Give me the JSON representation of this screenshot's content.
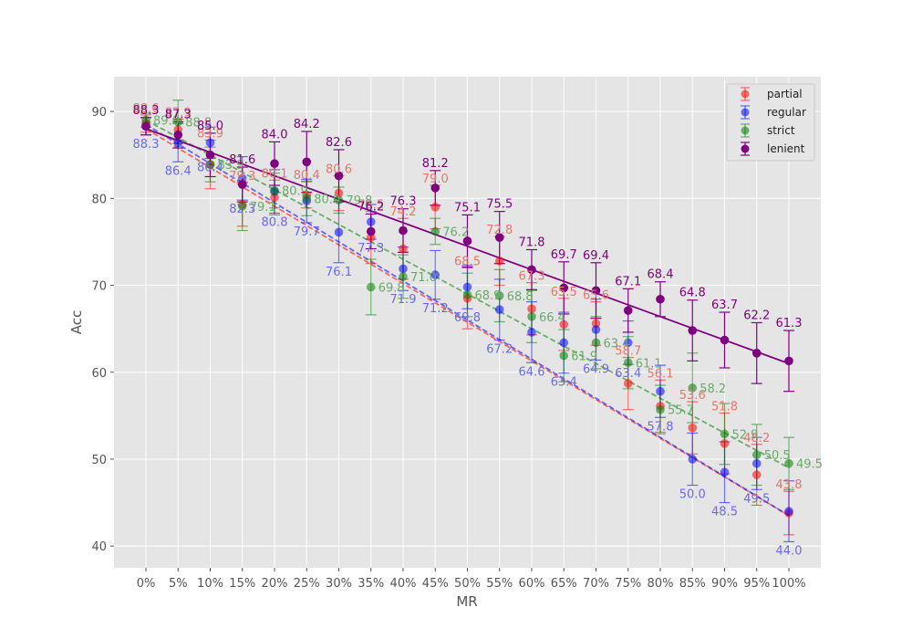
{
  "chart_data": {
    "type": "scatter",
    "title": "",
    "xlabel": "MR",
    "ylabel": "Acc",
    "categories": [
      "0%",
      "5%",
      "10%",
      "15%",
      "20%",
      "25%",
      "30%",
      "35%",
      "40%",
      "45%",
      "50%",
      "55%",
      "60%",
      "65%",
      "70%",
      "75%",
      "80%",
      "85%",
      "90%",
      "95%",
      "100%"
    ],
    "yticks": [
      40,
      50,
      60,
      70,
      80,
      90
    ],
    "ylim": [
      37.5,
      94.0
    ],
    "grid": true,
    "legend_position": "top-right",
    "series": [
      {
        "name": "partial",
        "color": "#ff0000",
        "label_color": "#e8766a",
        "values": [
          88.6,
          87.9,
          83.9,
          79.3,
          80.1,
          80.4,
          80.6,
          75.5,
          74.2,
          79.0,
          68.5,
          72.8,
          67.3,
          65.5,
          65.6,
          58.7,
          56.1,
          53.6,
          51.8,
          48.2,
          43.8
        ],
        "errors": [
          1.0,
          1.2,
          2.8,
          2.5,
          2.0,
          1.5,
          2.0,
          3.0,
          3.5,
          2.5,
          3.5,
          2.8,
          3.0,
          3.0,
          2.5,
          3.0,
          3.0,
          3.0,
          3.5,
          3.5,
          2.5
        ],
        "trend_start": 88.0,
        "trend_end": 43.5
      },
      {
        "name": "regular",
        "color": "#0000ff",
        "label_color": "#6a6ae8",
        "values": [
          88.3,
          86.4,
          86.4,
          82.3,
          80.8,
          79.7,
          76.1,
          77.3,
          71.9,
          71.2,
          69.8,
          67.2,
          64.6,
          63.4,
          64.9,
          63.4,
          57.8,
          50.0,
          48.5,
          49.5,
          44.0
        ],
        "errors": [
          1.0,
          2.2,
          1.8,
          2.5,
          2.5,
          2.5,
          3.5,
          2.0,
          2.5,
          2.8,
          2.5,
          3.5,
          3.5,
          3.5,
          3.5,
          2.5,
          3.0,
          3.0,
          3.5,
          3.0,
          3.5
        ],
        "trend_start": 88.5,
        "trend_end": 43.5
      },
      {
        "name": "strict",
        "color": "#008000",
        "label_color": "#6aaa6a",
        "values": [
          89.0,
          88.8,
          83.9,
          79.1,
          80.9,
          80.0,
          79.8,
          69.8,
          71.0,
          76.2,
          68.9,
          68.8,
          66.4,
          61.9,
          63.4,
          61.1,
          55.7,
          58.2,
          52.9,
          50.5,
          49.5
        ],
        "errors": [
          0.8,
          2.5,
          2.0,
          2.8,
          2.0,
          2.0,
          1.5,
          3.2,
          2.5,
          1.5,
          2.5,
          3.0,
          3.0,
          3.0,
          3.0,
          3.0,
          2.8,
          4.0,
          3.5,
          3.5,
          3.0
        ],
        "trend_start": 89.0,
        "trend_end": 49.0
      },
      {
        "name": "lenient",
        "color": "#800080",
        "label_color": "#800080",
        "values": [
          88.3,
          87.3,
          85.0,
          81.6,
          84.0,
          84.2,
          82.6,
          76.2,
          76.3,
          81.2,
          75.1,
          75.5,
          71.8,
          69.7,
          69.4,
          67.1,
          68.4,
          64.8,
          63.7,
          62.2,
          61.3
        ],
        "errors": [
          1.0,
          1.5,
          2.5,
          2.0,
          2.5,
          3.5,
          3.0,
          2.0,
          2.5,
          2.0,
          3.0,
          3.0,
          2.3,
          3.0,
          3.2,
          2.5,
          2.0,
          3.5,
          3.2,
          3.5,
          3.5
        ],
        "trend_start": 88.0,
        "trend_end": 61.0
      }
    ],
    "labels": [
      {
        "series": "partial",
        "texts": [
          "88.6",
          "87.9",
          "83.9",
          "79.3",
          "80.1",
          "80.4",
          "80.6",
          "75.5",
          "74.2",
          "79.0",
          "68.5",
          "72.8",
          "67.3",
          "65.5",
          "65.6",
          "58.7",
          "56.1",
          "53.6",
          "51.8",
          "48.2",
          "43.8"
        ]
      },
      {
        "series": "regular",
        "texts": [
          "88.3",
          "86.4",
          "86.4",
          "82.3",
          "80.8",
          "79.7",
          "76.1",
          "77.3",
          "71.9",
          "71.2",
          "69.8",
          "67.2",
          "64.6",
          "63.4",
          "64.9",
          "63.4",
          "57.8",
          "50.0",
          "48.5",
          "49.5",
          "44.0"
        ]
      },
      {
        "series": "strict",
        "texts": [
          "89.0",
          "88.8",
          "83.9",
          "79.1",
          "80.9",
          "80.0",
          "79.8",
          "69.8",
          "71.0",
          "76.2",
          "68.9",
          "68.8",
          "66.4",
          "61.9",
          "63.4",
          "61.1",
          "55.7",
          "58.2",
          "52.9",
          "50.5",
          "49.5"
        ]
      },
      {
        "series": "lenient",
        "texts": [
          "88.3",
          "87.3",
          "85.0",
          "81.6",
          "84.0",
          "84.2",
          "82.6",
          "76.2",
          "76.3",
          "81.2",
          "75.1",
          "75.5",
          "71.8",
          "69.7",
          "69.4",
          "67.1",
          "68.4",
          "64.8",
          "63.7",
          "62.2",
          "61.3"
        ]
      }
    ]
  }
}
